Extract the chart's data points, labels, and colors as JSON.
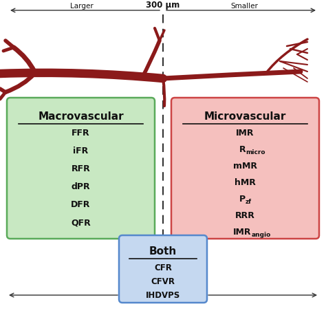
{
  "arrow_label": "300 μm",
  "left_label": "Larger",
  "right_label": "Smaller",
  "macro_title": "Macrovascular",
  "macro_items": [
    "FFR",
    "iFR",
    "RFR",
    "dPR",
    "DFR",
    "QFR"
  ],
  "micro_title": "Microvascular",
  "micro_items_main": [
    "IMR",
    "R",
    "mMR",
    "hMR",
    "P",
    "RRR",
    "IMR"
  ],
  "micro_items_sub": [
    "",
    "micro",
    "",
    "",
    "zf",
    "",
    "angio"
  ],
  "both_title": "Both",
  "both_items": [
    "CFR",
    "CFVR",
    "IHDVPS"
  ],
  "macro_box_color": "#c8e8c2",
  "micro_box_color": "#f5c0be",
  "both_box_color": "#c5d8f0",
  "macro_box_edge": "#5aaa5a",
  "micro_box_edge": "#cc4444",
  "both_box_edge": "#5588cc",
  "vessel_color": "#8b1a1a",
  "dashed_color": "#333333",
  "arrow_color": "#333333",
  "text_color": "#111111",
  "bg_color": "#ffffff"
}
